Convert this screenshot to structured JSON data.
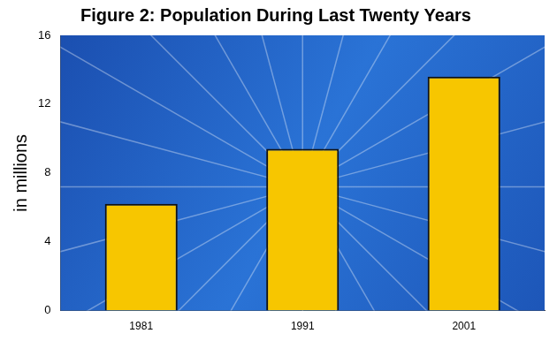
{
  "chart_data": {
    "type": "bar",
    "title": "Figure 2: Population During Last Twenty Years",
    "y_label": "in millions",
    "categories": [
      "1981",
      "1991",
      "2001"
    ],
    "values": [
      6.2,
      9.4,
      13.6
    ],
    "color": "#f7c600",
    "ylim": [
      0,
      16
    ],
    "yticks": [
      0,
      4,
      8,
      12,
      16
    ],
    "grid": false
  }
}
